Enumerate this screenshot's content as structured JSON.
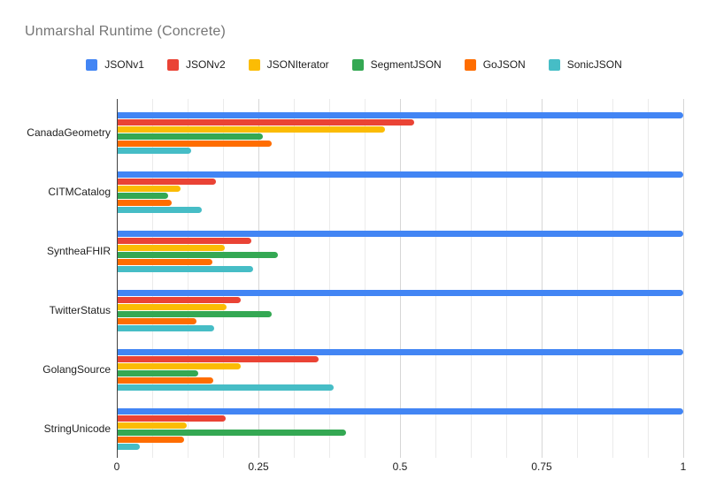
{
  "title": "Unmarshal Runtime (Concrete)",
  "legend": [
    {
      "label": "JSONv1",
      "color": "#4285F4"
    },
    {
      "label": "JSONv2",
      "color": "#EA4335"
    },
    {
      "label": "JSONIterator",
      "color": "#FBBC04"
    },
    {
      "label": "SegmentJSON",
      "color": "#34A853"
    },
    {
      "label": "GoJSON",
      "color": "#FF6D00"
    },
    {
      "label": "SonicJSON",
      "color": "#46BDC6"
    }
  ],
  "colors": {
    "title_text": "#757575",
    "axis_text": "#212121",
    "axis_line": "#424242",
    "grid_major": "#d6d6d6",
    "grid_minor": "#ebebeb",
    "background": "#ffffff"
  },
  "chart_data": {
    "type": "bar",
    "orientation": "horizontal",
    "title": "Unmarshal Runtime (Concrete)",
    "categories": [
      "CanadaGeometry",
      "CITMCatalog",
      "SyntheaFHIR",
      "TwitterStatus",
      "GolangSource",
      "StringUnicode"
    ],
    "series": [
      {
        "name": "JSONv1",
        "color": "#4285F4",
        "values": [
          1.0,
          1.0,
          1.0,
          1.0,
          1.0,
          1.0
        ]
      },
      {
        "name": "JSONv2",
        "color": "#EA4335",
        "values": [
          0.525,
          0.173,
          0.236,
          0.217,
          0.355,
          0.191
        ]
      },
      {
        "name": "JSONIterator",
        "color": "#FBBC04",
        "values": [
          0.472,
          0.111,
          0.189,
          0.192,
          0.218,
          0.122
        ]
      },
      {
        "name": "SegmentJSON",
        "color": "#34A853",
        "values": [
          0.256,
          0.089,
          0.283,
          0.272,
          0.142,
          0.404
        ]
      },
      {
        "name": "GoJSON",
        "color": "#FF6D00",
        "values": [
          0.273,
          0.096,
          0.167,
          0.139,
          0.169,
          0.117
        ]
      },
      {
        "name": "SonicJSON",
        "color": "#46BDC6",
        "values": [
          0.13,
          0.148,
          0.239,
          0.17,
          0.382,
          0.039
        ]
      }
    ],
    "xlabel": "",
    "ylabel": "",
    "xlim": [
      0,
      1
    ],
    "x_ticks": [
      0,
      0.25,
      0.5,
      0.75,
      1
    ],
    "x_tick_labels": [
      "0",
      "0.25",
      "0.5",
      "0.75",
      "1"
    ],
    "minor_tick_step": 0.0625,
    "grid": true,
    "legend_position": "top"
  }
}
